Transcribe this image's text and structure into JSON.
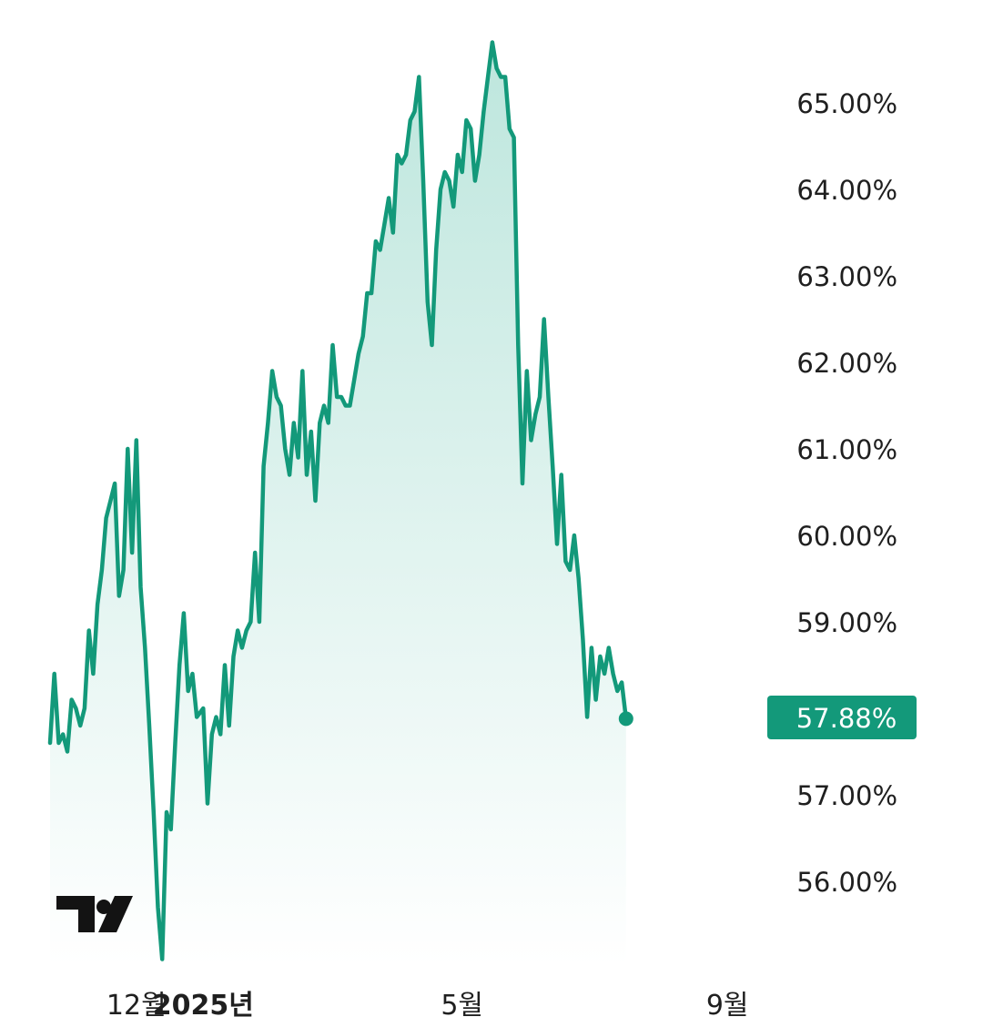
{
  "chart_data": {
    "type": "area",
    "ylim": [
      55.0,
      66.0
    ],
    "y_ticks": [
      {
        "value": 65,
        "label": "65.00%"
      },
      {
        "value": 64,
        "label": "64.00%"
      },
      {
        "value": 63,
        "label": "63.00%"
      },
      {
        "value": 62,
        "label": "62.00%"
      },
      {
        "value": 61,
        "label": "61.00%"
      },
      {
        "value": 60,
        "label": "60.00%"
      },
      {
        "value": 59,
        "label": "59.00%"
      },
      {
        "value": 57,
        "label": "57.00%"
      },
      {
        "value": 56,
        "label": "56.00%"
      }
    ],
    "x_ticks": [
      {
        "date": "2024-12-01",
        "label": "12월",
        "bold": false
      },
      {
        "date": "2025-01-01",
        "label": "2025년",
        "bold": true
      },
      {
        "date": "2025-05-01",
        "label": "5월",
        "bold": false
      },
      {
        "date": "2025-09-01",
        "label": "9월",
        "bold": false
      }
    ],
    "x_range": [
      "2024-10-22",
      "2025-09-14"
    ],
    "last_value": 57.88,
    "last_value_label": "57.88%",
    "colors": {
      "line": "#13997a",
      "badge": "#13997a",
      "fill_top": "#bde6dd",
      "fill_bottom": "#ffffff"
    },
    "grid": false,
    "series": [
      {
        "points": [
          [
            "2024-10-22",
            57.6
          ],
          [
            "2024-10-24",
            58.4
          ],
          [
            "2024-10-26",
            57.6
          ],
          [
            "2024-10-28",
            57.7
          ],
          [
            "2024-10-30",
            57.5
          ],
          [
            "2024-11-01",
            58.1
          ],
          [
            "2024-11-03",
            58.0
          ],
          [
            "2024-11-05",
            57.8
          ],
          [
            "2024-11-07",
            58.0
          ],
          [
            "2024-11-09",
            58.9
          ],
          [
            "2024-11-11",
            58.4
          ],
          [
            "2024-11-13",
            59.2
          ],
          [
            "2024-11-15",
            59.6
          ],
          [
            "2024-11-17",
            60.2
          ],
          [
            "2024-11-19",
            60.4
          ],
          [
            "2024-11-21",
            60.6
          ],
          [
            "2024-11-23",
            59.3
          ],
          [
            "2024-11-25",
            59.6
          ],
          [
            "2024-11-27",
            61.0
          ],
          [
            "2024-11-29",
            59.8
          ],
          [
            "2024-12-01",
            61.1
          ],
          [
            "2024-12-03",
            59.4
          ],
          [
            "2024-12-05",
            58.7
          ],
          [
            "2024-12-07",
            57.8
          ],
          [
            "2024-12-09",
            56.8
          ],
          [
            "2024-12-11",
            55.7
          ],
          [
            "2024-12-13",
            55.1
          ],
          [
            "2024-12-15",
            56.8
          ],
          [
            "2024-12-17",
            56.6
          ],
          [
            "2024-12-19",
            57.6
          ],
          [
            "2024-12-21",
            58.5
          ],
          [
            "2024-12-23",
            59.1
          ],
          [
            "2024-12-25",
            58.2
          ],
          [
            "2024-12-27",
            58.4
          ],
          [
            "2024-12-29",
            57.9
          ],
          [
            "2025-01-01",
            58.0
          ],
          [
            "2025-01-03",
            56.9
          ],
          [
            "2025-01-05",
            57.7
          ],
          [
            "2025-01-07",
            57.9
          ],
          [
            "2025-01-09",
            57.7
          ],
          [
            "2025-01-11",
            58.5
          ],
          [
            "2025-01-13",
            57.8
          ],
          [
            "2025-01-15",
            58.6
          ],
          [
            "2025-01-17",
            58.9
          ],
          [
            "2025-01-19",
            58.7
          ],
          [
            "2025-01-21",
            58.9
          ],
          [
            "2025-01-23",
            59.0
          ],
          [
            "2025-01-25",
            59.8
          ],
          [
            "2025-01-27",
            59.0
          ],
          [
            "2025-01-29",
            60.8
          ],
          [
            "2025-01-31",
            61.3
          ],
          [
            "2025-02-02",
            61.9
          ],
          [
            "2025-02-04",
            61.6
          ],
          [
            "2025-02-06",
            61.5
          ],
          [
            "2025-02-08",
            61.0
          ],
          [
            "2025-02-10",
            60.7
          ],
          [
            "2025-02-12",
            61.3
          ],
          [
            "2025-02-14",
            60.9
          ],
          [
            "2025-02-16",
            61.9
          ],
          [
            "2025-02-18",
            60.7
          ],
          [
            "2025-02-20",
            61.2
          ],
          [
            "2025-02-22",
            60.4
          ],
          [
            "2025-02-24",
            61.3
          ],
          [
            "2025-02-26",
            61.5
          ],
          [
            "2025-02-28",
            61.3
          ],
          [
            "2025-03-02",
            62.2
          ],
          [
            "2025-03-04",
            61.6
          ],
          [
            "2025-03-06",
            61.6
          ],
          [
            "2025-03-08",
            61.5
          ],
          [
            "2025-03-10",
            61.5
          ],
          [
            "2025-03-12",
            61.8
          ],
          [
            "2025-03-14",
            62.1
          ],
          [
            "2025-03-16",
            62.3
          ],
          [
            "2025-03-18",
            62.8
          ],
          [
            "2025-03-20",
            62.8
          ],
          [
            "2025-03-22",
            63.4
          ],
          [
            "2025-03-24",
            63.3
          ],
          [
            "2025-03-26",
            63.6
          ],
          [
            "2025-03-28",
            63.9
          ],
          [
            "2025-03-30",
            63.5
          ],
          [
            "2025-04-01",
            64.4
          ],
          [
            "2025-04-03",
            64.3
          ],
          [
            "2025-04-05",
            64.4
          ],
          [
            "2025-04-07",
            64.8
          ],
          [
            "2025-04-09",
            64.9
          ],
          [
            "2025-04-11",
            65.3
          ],
          [
            "2025-04-13",
            64.1
          ],
          [
            "2025-04-15",
            62.7
          ],
          [
            "2025-04-17",
            62.2
          ],
          [
            "2025-04-19",
            63.3
          ],
          [
            "2025-04-21",
            64.0
          ],
          [
            "2025-04-23",
            64.2
          ],
          [
            "2025-04-25",
            64.1
          ],
          [
            "2025-04-27",
            63.8
          ],
          [
            "2025-04-29",
            64.4
          ],
          [
            "2025-05-01",
            64.2
          ],
          [
            "2025-05-03",
            64.8
          ],
          [
            "2025-05-05",
            64.7
          ],
          [
            "2025-05-07",
            64.1
          ],
          [
            "2025-05-09",
            64.4
          ],
          [
            "2025-05-11",
            64.9
          ],
          [
            "2025-05-13",
            65.3
          ],
          [
            "2025-05-15",
            65.7
          ],
          [
            "2025-05-17",
            65.4
          ],
          [
            "2025-05-19",
            65.3
          ],
          [
            "2025-05-21",
            65.3
          ],
          [
            "2025-05-23",
            64.7
          ],
          [
            "2025-05-25",
            64.6
          ],
          [
            "2025-05-27",
            62.2
          ],
          [
            "2025-05-29",
            60.6
          ],
          [
            "2025-05-31",
            61.9
          ],
          [
            "2025-06-02",
            61.1
          ],
          [
            "2025-06-04",
            61.4
          ],
          [
            "2025-06-06",
            61.6
          ],
          [
            "2025-06-08",
            62.5
          ],
          [
            "2025-06-10",
            61.6
          ],
          [
            "2025-06-12",
            60.8
          ],
          [
            "2025-06-14",
            59.9
          ],
          [
            "2025-06-16",
            60.7
          ],
          [
            "2025-06-18",
            59.7
          ],
          [
            "2025-06-20",
            59.6
          ],
          [
            "2025-06-22",
            60.0
          ],
          [
            "2025-06-24",
            59.5
          ],
          [
            "2025-06-26",
            58.8
          ],
          [
            "2025-06-28",
            57.9
          ],
          [
            "2025-06-30",
            58.7
          ],
          [
            "2025-07-02",
            58.1
          ],
          [
            "2025-07-04",
            58.6
          ],
          [
            "2025-07-06",
            58.4
          ],
          [
            "2025-07-08",
            58.7
          ],
          [
            "2025-07-10",
            58.4
          ],
          [
            "2025-07-12",
            58.2
          ],
          [
            "2025-07-14",
            58.3
          ],
          [
            "2025-07-16",
            57.88
          ]
        ]
      }
    ]
  }
}
